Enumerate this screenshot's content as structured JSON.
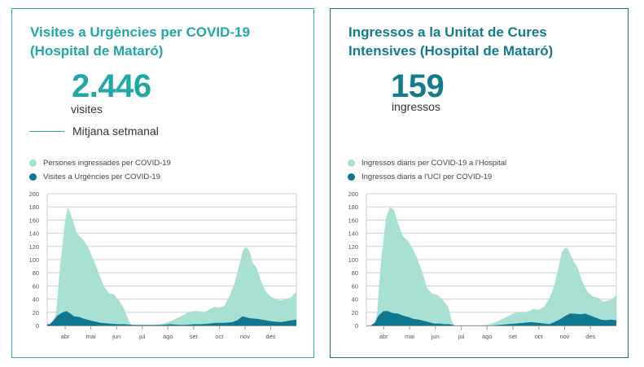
{
  "colors": {
    "light_area": "#a8e0d4",
    "dark_area": "#0d7890",
    "grid": "#cfcfcf",
    "card1_accent": "#22a6a6",
    "card2_accent": "#137b8e"
  },
  "cards": [
    {
      "title_line1": "Visites a Urgències per COVID-19",
      "title_line2": "(Hospital de Mataró)",
      "big_number": "2.446",
      "unit": "visites",
      "avg_label": "Mitjana setmanal",
      "legend": [
        "Persones ingressades per COVID-19",
        "Visites a Urgències per COVID-19"
      ]
    },
    {
      "title_line1": "Ingressos a la Unitat de Cures",
      "title_line2": "Intensives (Hospital de Mataró)",
      "big_number": "159",
      "unit": "ingressos",
      "legend": [
        "Ingressos diaris per COVID-19 a l'Hospital",
        "Ingressos diaris a l'UCI per COVID-19"
      ]
    }
  ],
  "chart_data": [
    {
      "type": "area",
      "title": "Visites a Urgències per COVID-19 (Hospital de Mataró)",
      "xlabel": "",
      "ylabel": "",
      "ylim": [
        0,
        200
      ],
      "yticks": [
        0,
        20,
        40,
        60,
        80,
        100,
        120,
        140,
        160,
        180,
        200
      ],
      "xlim": [
        -0.7,
        9.0
      ],
      "xticks": [
        0,
        1,
        2,
        3,
        4,
        5,
        6,
        7,
        8
      ],
      "xtick_labels": [
        "abr",
        "mai",
        "jun",
        "jul",
        "ago",
        "set",
        "oct",
        "nov",
        "des"
      ],
      "x_unit": "months since 1 April",
      "grid": true,
      "legend_position": "top-left",
      "series": [
        {
          "name": "Persones ingressades per COVID-19",
          "x": [
            -0.7,
            -0.5,
            -0.35,
            -0.2,
            0,
            0.1,
            0.25,
            0.45,
            0.7,
            0.9,
            1.1,
            1.3,
            1.5,
            1.7,
            1.9,
            2.1,
            2.3,
            2.5,
            2.6,
            2.7,
            2.85,
            3.0,
            3.3,
            3.6,
            3.9,
            4.2,
            4.5,
            4.8,
            5.0,
            5.2,
            5.4,
            5.6,
            5.8,
            6.0,
            6.2,
            6.4,
            6.6,
            6.8,
            6.9,
            7.0,
            7.1,
            7.2,
            7.3,
            7.45,
            7.6,
            7.8,
            8.0,
            8.2,
            8.4,
            8.6,
            8.8,
            9.0
          ],
          "values": [
            0,
            2,
            20,
            90,
            160,
            180,
            165,
            140,
            130,
            118,
            100,
            80,
            60,
            49,
            47,
            38,
            25,
            5,
            1,
            0,
            0,
            0,
            0,
            1,
            4,
            8,
            14,
            20,
            22,
            22,
            20,
            24,
            28,
            27,
            30,
            45,
            65,
            95,
            112,
            118,
            118,
            110,
            95,
            88,
            70,
            52,
            44,
            40,
            38,
            40,
            43,
            52
          ]
        },
        {
          "name": "Visites a Urgències per COVID-19",
          "x": [
            -0.7,
            -0.6,
            -0.45,
            -0.3,
            -0.1,
            0.05,
            0.2,
            0.35,
            0.55,
            0.75,
            0.95,
            1.15,
            1.4,
            1.7,
            2.0,
            2.3,
            2.6,
            2.9,
            3.2,
            3.5,
            3.8,
            4.1,
            4.4,
            4.7,
            5.0,
            5.3,
            5.6,
            5.9,
            6.2,
            6.5,
            6.7,
            6.9,
            7.0,
            7.2,
            7.5,
            7.8,
            8.1,
            8.4,
            8.7,
            9.0
          ],
          "values": [
            2,
            2,
            8,
            15,
            20,
            22,
            18,
            14,
            13,
            10,
            8,
            6,
            4,
            3,
            2,
            2,
            1,
            1,
            1,
            1,
            1,
            2,
            1,
            1,
            2,
            2,
            3,
            4,
            4,
            5,
            8,
            14,
            13,
            11,
            10,
            8,
            6,
            5,
            7,
            9
          ]
        }
      ]
    },
    {
      "type": "area",
      "title": "Ingressos a la Unitat de Cures Intensives (Hospital de Mataró)",
      "xlabel": "",
      "ylabel": "",
      "ylim": [
        0,
        200
      ],
      "yticks": [
        0,
        20,
        40,
        60,
        80,
        100,
        120,
        140,
        160,
        180,
        200
      ],
      "xlim": [
        -0.67,
        9.0
      ],
      "xticks": [
        0,
        1,
        2,
        3,
        4,
        5,
        6,
        7,
        8
      ],
      "xtick_labels": [
        "abr",
        "mai",
        "jun",
        "jul",
        "ago",
        "set",
        "oct",
        "nov",
        "des"
      ],
      "x_unit": "months since 1 April",
      "grid": true,
      "legend_position": "top-left",
      "series": [
        {
          "name": "Ingressos diaris per COVID-19 a l'Hospital",
          "x": [
            -0.67,
            -0.35,
            -0.25,
            -0.1,
            0.1,
            0.25,
            0.4,
            0.55,
            0.75,
            0.95,
            1.1,
            1.3,
            1.5,
            1.7,
            1.9,
            2.1,
            2.3,
            2.5,
            2.65,
            2.75,
            3.0,
            3.3,
            3.6,
            3.9,
            4.2,
            4.5,
            4.8,
            5.0,
            5.2,
            5.4,
            5.6,
            5.8,
            6.0,
            6.2,
            6.4,
            6.6,
            6.8,
            6.9,
            7.0,
            7.1,
            7.2,
            7.35,
            7.5,
            7.7,
            7.9,
            8.1,
            8.3,
            8.5,
            8.7,
            8.85,
            9.0
          ],
          "values": [
            0,
            0,
            20,
            100,
            165,
            180,
            175,
            155,
            135,
            128,
            118,
            102,
            80,
            55,
            48,
            46,
            38,
            28,
            5,
            0,
            0,
            0,
            0,
            1,
            3,
            8,
            14,
            18,
            20,
            19,
            22,
            25,
            24,
            28,
            40,
            60,
            95,
            112,
            117,
            118,
            110,
            97,
            88,
            65,
            50,
            44,
            42,
            36,
            38,
            40,
            46
          ]
        },
        {
          "name": "Ingressos diaris a l'UCI per COVID-19",
          "x": [
            -0.67,
            -0.5,
            -0.35,
            -0.2,
            0,
            0.15,
            0.35,
            0.55,
            0.75,
            0.95,
            1.15,
            1.35,
            1.55,
            1.75,
            1.95,
            2.15,
            2.35,
            2.55,
            2.75,
            3.0,
            3.3,
            3.6,
            3.9,
            4.2,
            4.5,
            4.8,
            5.1,
            5.4,
            5.7,
            6.0,
            6.2,
            6.4,
            6.6,
            6.8,
            7.0,
            7.2,
            7.4,
            7.6,
            7.8,
            8.0,
            8.2,
            8.4,
            8.6,
            8.8,
            9.0
          ],
          "values": [
            0,
            0,
            4,
            15,
            22,
            22,
            19,
            18,
            15,
            13,
            10,
            9,
            7,
            5,
            3,
            3,
            2,
            2,
            0,
            0,
            0,
            0,
            0,
            0,
            1,
            2,
            3,
            4,
            5,
            4,
            3,
            2,
            5,
            9,
            14,
            18,
            18,
            17,
            18,
            15,
            12,
            9,
            8,
            9,
            8
          ]
        }
      ]
    }
  ]
}
